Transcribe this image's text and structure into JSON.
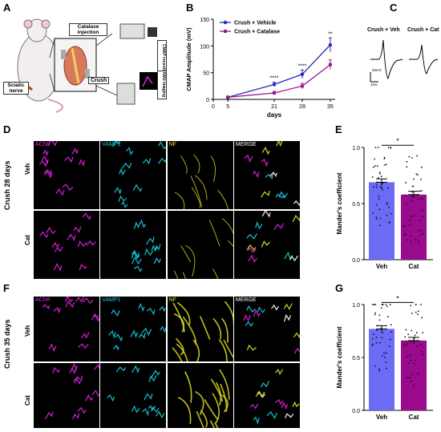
{
  "panels": {
    "A": {
      "label": "A",
      "catalase_injection": "Catalase injection",
      "cmap_recording": "CMAP recording",
      "nmj_imaging": "NMJ imaging",
      "crush": "Crush",
      "sciatic_nerve": "Sciatic nerve"
    },
    "B": {
      "label": "B"
    },
    "C": {
      "label": "C",
      "veh_title": "Crush + Veh",
      "cat_title": "Crush + Cat",
      "scale_v": "20mV",
      "scale_t": "1ms"
    },
    "D": {
      "label": "D",
      "group": "Crush 28 days",
      "rows": [
        "Veh",
        "Cat"
      ],
      "channels": [
        "AChR",
        "VAMP1",
        "NF",
        "MERGE"
      ]
    },
    "E": {
      "label": "E"
    },
    "F": {
      "label": "F",
      "group": "Crush 35 days",
      "rows": [
        "Veh",
        "Cat"
      ],
      "channels": [
        "AChR",
        "VAMP1",
        "NF",
        "MERGE"
      ]
    },
    "G": {
      "label": "G"
    }
  },
  "colors": {
    "vehicle": "#2e2bb3",
    "catalase": "#9a1b8f",
    "bar_veh": "#6b6bf5",
    "bar_cat": "#9a0a8c",
    "achr": "#e020e0",
    "vamp1": "#18c8d8",
    "nf": "#e0e020"
  },
  "chart_data": [
    {
      "type": "line",
      "panel": "B",
      "ylabel": "CMAP Amplitude (mV)",
      "xlabel": "days",
      "x": [
        5,
        21,
        28,
        35
      ],
      "xticks": [
        "0",
        "5",
        "21",
        "28",
        "35"
      ],
      "yticks": [
        "0",
        "50",
        "100",
        "150"
      ],
      "ylim": [
        0,
        150
      ],
      "series": [
        {
          "name": "Crush + Vehicle",
          "values": [
            4,
            28,
            47,
            102
          ],
          "err": [
            1,
            4,
            8,
            13
          ]
        },
        {
          "name": "Crush + Catalase",
          "values": [
            4,
            12,
            25,
            65
          ],
          "err": [
            1,
            3,
            5,
            9
          ]
        }
      ],
      "significance": [
        "****",
        "****",
        "**"
      ],
      "legend": "top-left"
    },
    {
      "type": "bar",
      "panel": "E",
      "categories": [
        "Veh",
        "Cat"
      ],
      "values": [
        0.69,
        0.58
      ],
      "err": [
        0.03,
        0.03
      ],
      "ylabel": "Mander's coefficient",
      "yticks": [
        "0.0",
        "0.5",
        "1.0"
      ],
      "ylim": [
        0,
        1.0
      ],
      "significance": "*"
    },
    {
      "type": "bar",
      "panel": "G",
      "categories": [
        "Veh",
        "Cat"
      ],
      "values": [
        0.77,
        0.66
      ],
      "err": [
        0.03,
        0.03
      ],
      "ylabel": "Mander's coefficient",
      "yticks": [
        "0.0",
        "0.5",
        "1.0"
      ],
      "ylim": [
        0,
        1.0
      ],
      "significance": "*"
    }
  ]
}
